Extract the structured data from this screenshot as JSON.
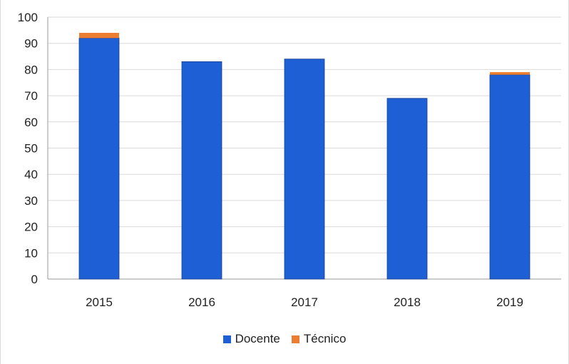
{
  "chart_data": {
    "type": "bar",
    "stacked": true,
    "title": "",
    "xlabel": "",
    "ylabel": "",
    "categories": [
      "2015",
      "2016",
      "2017",
      "2018",
      "2019"
    ],
    "series": [
      {
        "name": "Docente",
        "color": "#1f5fd6",
        "values": [
          92,
          83,
          84,
          69,
          78
        ]
      },
      {
        "name": "Técnico",
        "color": "#ed7d31",
        "values": [
          2,
          0,
          0,
          0,
          1
        ]
      }
    ],
    "ylim": [
      0,
      100
    ],
    "yticks": [
      0,
      10,
      20,
      30,
      40,
      50,
      60,
      70,
      80,
      90,
      100
    ],
    "grid": true,
    "legend_position": "bottom"
  }
}
